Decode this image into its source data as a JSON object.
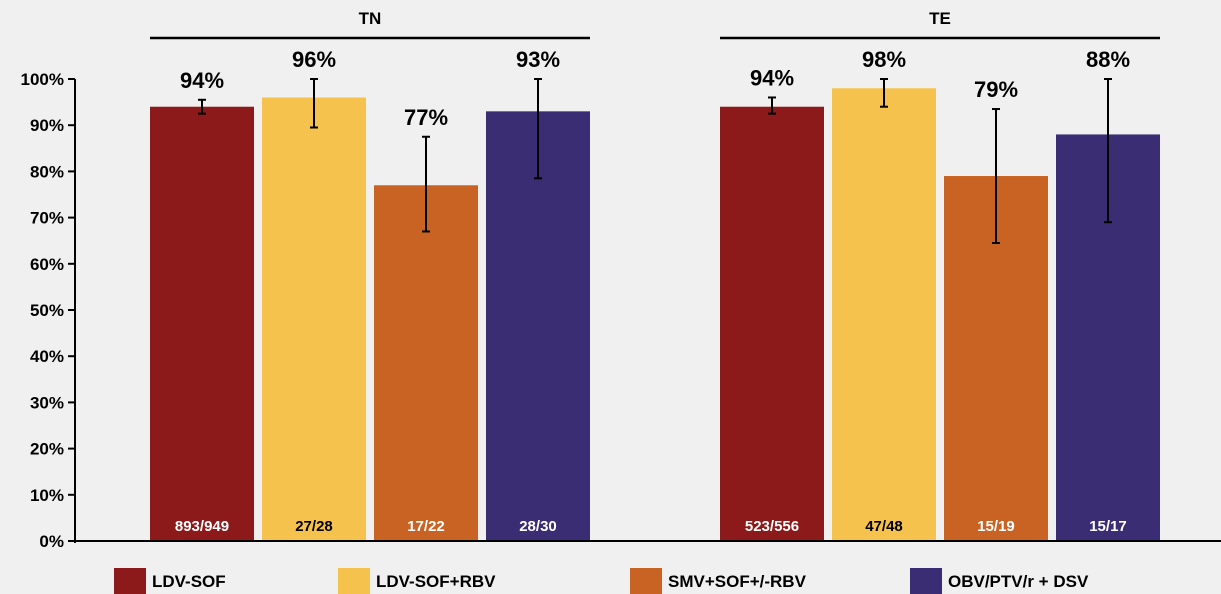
{
  "chart_data": {
    "type": "bar",
    "groups": [
      {
        "label": "TN",
        "bars": [
          {
            "series": "LDV-SOF",
            "value": 94,
            "label": "94%",
            "n": "893/949",
            "err_low": 92.5,
            "err_high": 95.5
          },
          {
            "series": "LDV-SOF+RBV",
            "value": 96,
            "label": "96%",
            "n": "27/28",
            "err_low": 89.5,
            "err_high": 100
          },
          {
            "series": "SMV+SOF+/-RBV",
            "value": 77,
            "label": "77%",
            "n": "17/22",
            "err_low": 67,
            "err_high": 87.5
          },
          {
            "series": "OBV/PTV/r + DSV",
            "value": 93,
            "label": "93%",
            "n": "28/30",
            "err_low": 78.5,
            "err_high": 100
          }
        ]
      },
      {
        "label": "TE",
        "bars": [
          {
            "series": "LDV-SOF",
            "value": 94,
            "label": "94%",
            "n": "523/556",
            "err_low": 92.5,
            "err_high": 96
          },
          {
            "series": "LDV-SOF+RBV",
            "value": 98,
            "label": "98%",
            "n": "47/48",
            "err_low": 94,
            "err_high": 100
          },
          {
            "series": "SMV+SOF+/-RBV",
            "value": 79,
            "label": "79%",
            "n": "15/19",
            "err_low": 64.5,
            "err_high": 93.5
          },
          {
            "series": "OBV/PTV/r + DSV",
            "value": 88,
            "label": "88%",
            "n": "15/17",
            "err_low": 69,
            "err_high": 100
          }
        ]
      }
    ],
    "series": [
      {
        "name": "LDV-SOF",
        "color": "#8c1a1a",
        "n_label_color": "#ffffff"
      },
      {
        "name": "LDV-SOF+RBV",
        "color": "#f5c24e",
        "n_label_color": "#000000"
      },
      {
        "name": "SMV+SOF+/-RBV",
        "color": "#c96323",
        "n_label_color": "#ffffff"
      },
      {
        "name": "OBV/PTV/r + DSV",
        "color": "#3a2d74",
        "n_label_color": "#ffffff"
      }
    ],
    "y_ticks": [
      "0%",
      "10%",
      "20%",
      "30%",
      "40%",
      "50%",
      "60%",
      "70%",
      "80%",
      "90%",
      "100%"
    ],
    "ylim": [
      0,
      100
    ],
    "grid": false,
    "legend_position": "bottom"
  }
}
